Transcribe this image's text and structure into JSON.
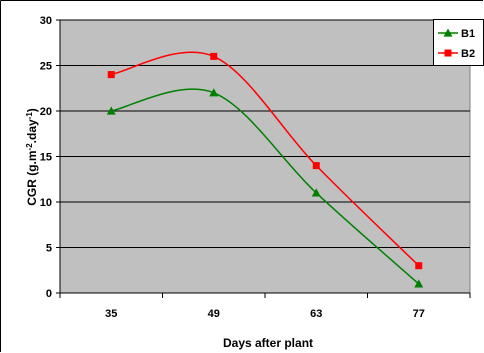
{
  "chart_data": {
    "type": "line",
    "x": [
      35,
      49,
      63,
      77
    ],
    "categories": [
      "35",
      "49",
      "63",
      "77"
    ],
    "yticks": [
      "0",
      "5",
      "10",
      "15",
      "20",
      "25",
      "30"
    ],
    "ylim": [
      0,
      30
    ],
    "xlabel": "Days after plant",
    "ylabel": {
      "base": "CGR (g.m",
      "sup1": "-2",
      "mid": ".day",
      "sup2": "-1",
      "end": ")"
    },
    "smooth": true,
    "grid": "horizontal",
    "legend_position": "top-right",
    "plot_background": "#c0c0c0",
    "series": [
      {
        "name": "B1",
        "values": [
          20,
          22,
          11,
          1
        ],
        "color": "#008000",
        "marker": "triangle"
      },
      {
        "name": "B2",
        "values": [
          24,
          26,
          14,
          3
        ],
        "color": "#ff0000",
        "marker": "square"
      }
    ]
  }
}
